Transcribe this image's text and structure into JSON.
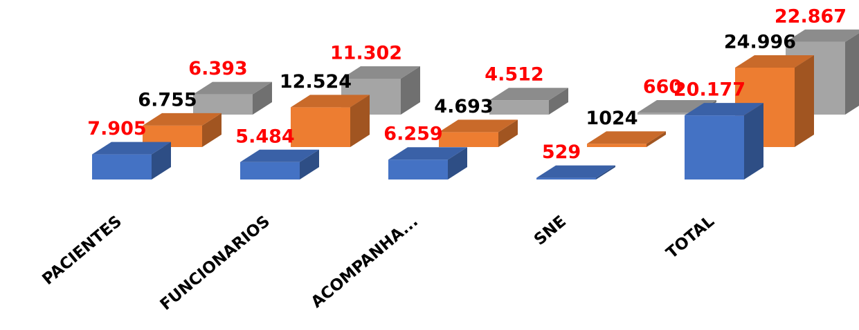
{
  "chart_data": {
    "type": "bar3d",
    "categories": [
      "PACIENTES",
      "FUNCIONARIOS",
      "ACOMPANHA...",
      "SNE",
      "TOTAL"
    ],
    "series": [
      {
        "color": "#4472c4",
        "label_color": "#ff0000",
        "values": [
          7905,
          5484,
          6259,
          529,
          20177
        ],
        "value_labels": [
          "7.905",
          "5.484",
          "6.259",
          "529",
          "20.177"
        ]
      },
      {
        "color": "#ed7d31",
        "label_color": "#000000",
        "values": [
          6755,
          12524,
          4693,
          1024,
          24996
        ],
        "value_labels": [
          "6.755",
          "12.524",
          "4.693",
          "1024",
          "24.996"
        ]
      },
      {
        "color": "#a5a5a5",
        "label_color": "#ff0000",
        "values": [
          6393,
          11302,
          4512,
          660,
          22867
        ],
        "value_labels": [
          "6.393",
          "11.302",
          "4.512",
          "660",
          "22.867"
        ]
      }
    ]
  }
}
